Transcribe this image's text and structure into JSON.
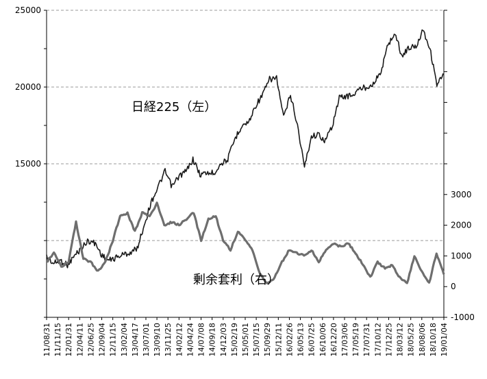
{
  "chart_data": {
    "type": "line",
    "title": "",
    "xlabel": "",
    "ylabel": "",
    "grid": "horizontal dashed",
    "x_ticks": [
      "11/08/31",
      "11/11/15",
      "12/01/31",
      "12/04/11",
      "12/06/25",
      "12/09/04",
      "12/11/15",
      "13/02/04",
      "13/04/17",
      "13/07/01",
      "13/09/10",
      "13/11/25",
      "14/02/12",
      "14/04/24",
      "14/07/08",
      "14/09/18",
      "14/12/03",
      "15/02/19",
      "15/05/01",
      "15/07/15",
      "15/09/29",
      "15/12/11",
      "16/02/26",
      "16/05/13",
      "16/07/25",
      "16/10/06",
      "16/12/20",
      "17/03/06",
      "17/05/19",
      "17/07/31",
      "17/10/12",
      "17/12/25",
      "18/03/12",
      "18/05/25",
      "18/08/06",
      "18/10/18",
      "19/01/04"
    ],
    "left_axis": {
      "ticks": [
        "15000",
        "20000",
        "25000"
      ],
      "ylim": [
        5000,
        25000
      ]
    },
    "right_axis": {
      "ticks": [
        "-1000",
        "0",
        "1000",
        "2000",
        "3000"
      ],
      "ylim": [
        -1000,
        9000
      ]
    },
    "series": [
      {
        "name": "日経225（左）",
        "axis": "left",
        "color": "#1a1a1a",
        "values": [
          8950,
          8500,
          8700,
          8400,
          9000,
          9500,
          10000,
          9800,
          9000,
          8700,
          8900,
          9100,
          9200,
          9500,
          11000,
          12500,
          13500,
          14500,
          13500,
          14200,
          14500,
          15300,
          14300,
          14400,
          14400,
          15000,
          15300,
          16600,
          17500,
          17700,
          18800,
          19500,
          20500,
          20600,
          18000,
          19500,
          17500,
          14800,
          16800,
          16900,
          16500,
          17500,
          19300,
          19400,
          19500,
          19900,
          20000,
          20300,
          21000,
          22800,
          23500,
          22000,
          22600,
          22600,
          23800,
          22500,
          20200,
          20800
        ]
      },
      {
        "name": "剰余套利（右）",
        "axis": "right",
        "color": "#6e6e6e",
        "values": [
          800,
          1100,
          650,
          800,
          2100,
          900,
          800,
          500,
          800,
          1500,
          2300,
          2400,
          1800,
          2400,
          2300,
          2700,
          2000,
          2100,
          2000,
          2200,
          2400,
          1500,
          2200,
          2300,
          1500,
          1200,
          1800,
          1500,
          1200,
          400,
          100,
          300,
          800,
          1200,
          1100,
          1000,
          1200,
          800,
          1200,
          1400,
          1300,
          1400,
          1100,
          700,
          300,
          800,
          600,
          700,
          300,
          100,
          1000,
          500,
          100,
          1100,
          400
        ]
      }
    ],
    "annotations": [
      "日経225（左）",
      "剰余套利（右）"
    ]
  }
}
